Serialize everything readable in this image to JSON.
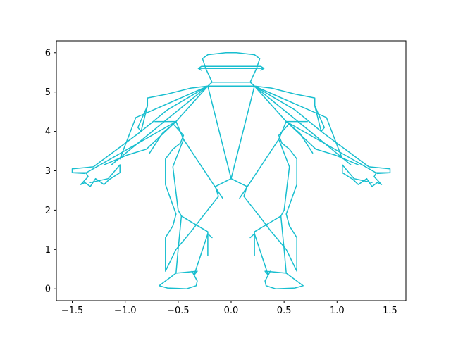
{
  "chart_data": {
    "type": "line",
    "title": "",
    "xlabel": "",
    "ylabel": "",
    "xlim": [
      -1.65,
      1.65
    ],
    "ylim": [
      -0.3,
      6.3
    ],
    "grid": false,
    "line_color": "#17becf",
    "x_ticks": [
      -1.5,
      -1.0,
      -0.5,
      0.0,
      0.5,
      1.0,
      1.5
    ],
    "x_tick_labels": [
      "−1.5",
      "−1.0",
      "−0.5",
      "0.0",
      "0.5",
      "1.0",
      "1.5"
    ],
    "y_ticks": [
      0,
      1,
      2,
      3,
      4,
      5,
      6
    ],
    "y_tick_labels": [
      "0",
      "1",
      "2",
      "3",
      "4",
      "5",
      "6"
    ],
    "series": [
      {
        "x": [
          -0.27,
          -0.22,
          -0.05,
          0.05,
          0.22,
          0.27,
          0.24,
          -0.24,
          -0.27
        ],
        "y": [
          5.85,
          5.95,
          6.0,
          6.0,
          5.95,
          5.85,
          5.6,
          5.6,
          5.85
        ]
      },
      {
        "x": [
          -0.31,
          0.31,
          0.28,
          0.31,
          0.28,
          -0.28,
          -0.31,
          -0.28,
          -0.31
        ],
        "y": [
          5.6,
          5.6,
          5.55,
          5.6,
          5.65,
          5.65,
          5.6,
          5.55,
          5.6
        ]
      },
      {
        "x": [
          -0.24,
          -0.18,
          0.18,
          0.24
        ],
        "y": [
          5.6,
          5.25,
          5.25,
          5.6
        ]
      },
      {
        "x": [
          -0.22,
          0.22,
          0.18,
          -0.18,
          -0.22
        ],
        "y": [
          5.15,
          5.15,
          5.25,
          5.25,
          5.15
        ]
      },
      {
        "x": [
          -0.22,
          -0.38,
          -0.6,
          -0.79,
          -0.79,
          -0.88,
          -0.85,
          -1.0,
          -1.3,
          -1.5,
          -1.5,
          -1.37,
          -1.35,
          -1.42,
          -1.38,
          -1.33,
          -1.28,
          -1.2,
          -1.15,
          -1.05,
          -1.05
        ],
        "y": [
          5.15,
          5.1,
          4.95,
          4.85,
          4.65,
          4.1,
          4.0,
          3.7,
          3.1,
          3.05,
          2.95,
          2.95,
          2.85,
          2.65,
          2.7,
          2.6,
          2.8,
          2.65,
          2.78,
          2.95,
          3.15
        ]
      },
      {
        "x": [
          -0.22,
          -0.52,
          -1.38,
          -1.5
        ],
        "y": [
          5.15,
          4.25,
          2.93,
          2.95
        ]
      },
      {
        "x": [
          -0.22,
          -0.7,
          -1.13
        ],
        "y": [
          5.15,
          4.1,
          3.15
        ]
      },
      {
        "x": [
          -0.22,
          -0.6,
          -0.85,
          -0.79
        ],
        "y": [
          5.15,
          4.55,
          4.0,
          4.65
        ]
      },
      {
        "x": [
          -0.22,
          -0.9,
          -1.05
        ],
        "y": [
          5.15,
          4.35,
          3.3
        ]
      },
      {
        "x": [
          -1.33,
          -1.16,
          -1.05
        ],
        "y": [
          2.7,
          2.8,
          3.15
        ]
      },
      {
        "x": [
          -0.52,
          -0.8,
          -0.98,
          -1.2
        ],
        "y": [
          4.25,
          3.55,
          3.4,
          3.15
        ]
      },
      {
        "x": [
          -0.52,
          -0.65,
          -0.77
        ],
        "y": [
          4.25,
          3.95,
          3.45
        ]
      },
      {
        "x": [
          -0.22,
          0.0,
          -0.15,
          -0.12,
          -0.28,
          -0.38,
          -0.52,
          -0.62,
          -0.62,
          -0.55,
          -0.52,
          -0.62,
          -0.62,
          -0.55,
          -0.48,
          -0.45,
          -0.55,
          -0.52,
          -0.72
        ],
        "y": [
          5.15,
          2.8,
          2.6,
          2.35,
          1.8,
          1.45,
          1.0,
          0.45,
          1.3,
          1.6,
          1.9,
          2.65,
          3.3,
          3.55,
          3.7,
          3.9,
          4.2,
          4.25,
          4.25
        ]
      },
      {
        "x": [
          -0.52,
          -0.45,
          -0.08,
          -0.13
        ],
        "y": [
          4.25,
          3.8,
          2.3,
          2.5
        ]
      },
      {
        "x": [
          -0.45,
          -0.55,
          -0.5,
          -0.47
        ],
        "y": [
          3.8,
          3.1,
          2.0,
          1.85
        ]
      },
      {
        "x": [
          -0.47,
          -0.22,
          -0.22
        ],
        "y": [
          1.85,
          1.45,
          0.85
        ]
      },
      {
        "x": [
          -0.47,
          -0.5,
          -0.52,
          -0.32,
          -0.35,
          -0.22,
          -0.18
        ],
        "y": [
          1.85,
          1.0,
          0.4,
          0.45,
          0.35,
          1.4,
          1.3
        ]
      },
      {
        "x": [
          -0.52,
          -0.68,
          -0.6,
          -0.42,
          -0.33,
          -0.32,
          -0.37
        ],
        "y": [
          0.4,
          0.08,
          0.02,
          0.0,
          0.08,
          0.2,
          0.45
        ]
      },
      {
        "x": [
          0.22,
          0.38,
          0.6,
          0.79,
          0.79,
          0.88,
          0.85,
          1.0,
          1.3,
          1.5,
          1.5,
          1.37,
          1.35,
          1.42,
          1.38,
          1.33,
          1.28,
          1.2,
          1.15,
          1.05,
          1.05
        ],
        "y": [
          5.15,
          5.1,
          4.95,
          4.85,
          4.65,
          4.1,
          4.0,
          3.7,
          3.1,
          3.05,
          2.95,
          2.95,
          2.85,
          2.65,
          2.7,
          2.6,
          2.8,
          2.65,
          2.78,
          2.95,
          3.15
        ]
      },
      {
        "x": [
          0.22,
          0.52,
          1.38,
          1.5
        ],
        "y": [
          5.15,
          4.25,
          2.93,
          2.95
        ]
      },
      {
        "x": [
          0.22,
          0.7,
          1.13
        ],
        "y": [
          5.15,
          4.1,
          3.15
        ]
      },
      {
        "x": [
          0.22,
          0.6,
          0.85,
          0.79
        ],
        "y": [
          5.15,
          4.55,
          4.0,
          4.65
        ]
      },
      {
        "x": [
          0.22,
          0.9,
          1.05
        ],
        "y": [
          5.15,
          4.35,
          3.3
        ]
      },
      {
        "x": [
          1.33,
          1.16,
          1.05
        ],
        "y": [
          2.7,
          2.8,
          3.15
        ]
      },
      {
        "x": [
          0.52,
          0.8,
          0.98,
          1.2
        ],
        "y": [
          4.25,
          3.55,
          3.4,
          3.15
        ]
      },
      {
        "x": [
          0.52,
          0.65,
          0.77
        ],
        "y": [
          4.25,
          3.95,
          3.45
        ]
      },
      {
        "x": [
          0.22,
          0.0,
          0.15,
          0.12,
          0.28,
          0.38,
          0.52,
          0.62,
          0.62,
          0.55,
          0.52,
          0.62,
          0.62,
          0.55,
          0.48,
          0.45,
          0.55,
          0.52,
          0.72
        ],
        "y": [
          5.15,
          2.8,
          2.6,
          2.35,
          1.8,
          1.45,
          1.0,
          0.45,
          1.3,
          1.6,
          1.9,
          2.65,
          3.3,
          3.55,
          3.7,
          3.9,
          4.2,
          4.25,
          4.25
        ]
      },
      {
        "x": [
          0.52,
          0.45,
          0.08,
          0.13
        ],
        "y": [
          4.25,
          3.8,
          2.3,
          2.5
        ]
      },
      {
        "x": [
          0.45,
          0.55,
          0.5,
          0.47
        ],
        "y": [
          3.8,
          3.1,
          2.0,
          1.85
        ]
      },
      {
        "x": [
          0.47,
          0.22,
          0.22
        ],
        "y": [
          1.85,
          1.45,
          0.85
        ]
      },
      {
        "x": [
          0.47,
          0.5,
          0.52,
          0.32,
          0.35,
          0.22,
          0.18
        ],
        "y": [
          1.85,
          1.0,
          0.4,
          0.45,
          0.35,
          1.4,
          1.3
        ]
      },
      {
        "x": [
          0.52,
          0.68,
          0.6,
          0.42,
          0.33,
          0.32,
          0.37
        ],
        "y": [
          0.4,
          0.08,
          0.02,
          0.0,
          0.08,
          0.2,
          0.45
        ]
      }
    ]
  }
}
